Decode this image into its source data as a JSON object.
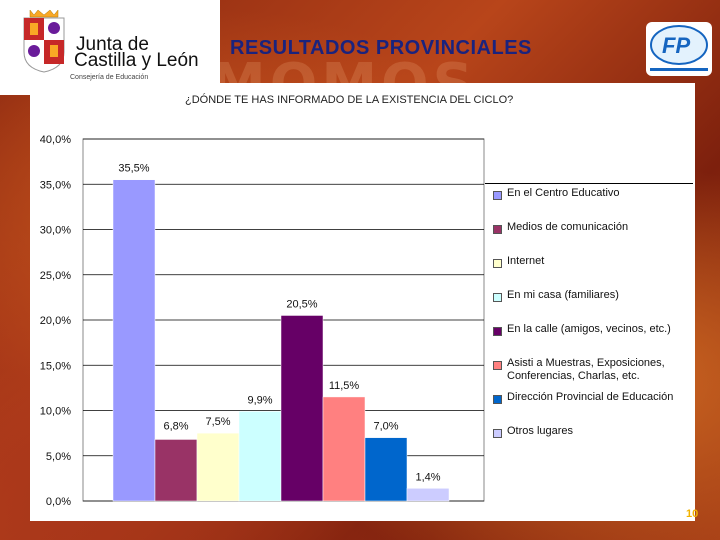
{
  "header": {
    "logo_line1": "Junta de",
    "logo_line2": "Castilla y León",
    "logo_sub": "Consejería de Educación",
    "title": "RESULTADOS PROVINCIALES"
  },
  "background_text": "MOMOS PROFESIO",
  "page_number": "10",
  "chart_data": {
    "type": "bar",
    "title": "¿DÓNDE TE HAS INFORMADO DE LA EXISTENCIA DEL CICLO?",
    "ylim": [
      0,
      40
    ],
    "yticks": [
      "0,0%",
      "5,0%",
      "10,0%",
      "15,0%",
      "20,0%",
      "25,0%",
      "30,0%",
      "35,0%",
      "40,0%"
    ],
    "grid": true,
    "legend_position": "right",
    "categories": [
      "En el Centro Educativo",
      "Medios de comunicación",
      "Internet",
      "En mi casa (familiares)",
      "En la calle (amigos, vecinos, etc.)",
      "Asisti a Muestras, Exposiciones, Conferencias, Charlas, etc.",
      "Dirección Provincial de Educación",
      "Otros lugares"
    ],
    "values": [
      35.5,
      6.8,
      7.5,
      9.9,
      20.5,
      11.5,
      7.0,
      1.4
    ],
    "labels": [
      "35,5%",
      "6,8%",
      "7,5%",
      "9,9%",
      "20,5%",
      "11,5%",
      "7,0%",
      "1,4%"
    ],
    "colors": [
      "#9999ff",
      "#993366",
      "#ffffcc",
      "#ccffff",
      "#660066",
      "#ff8080",
      "#0066cc",
      "#ccccff"
    ]
  }
}
